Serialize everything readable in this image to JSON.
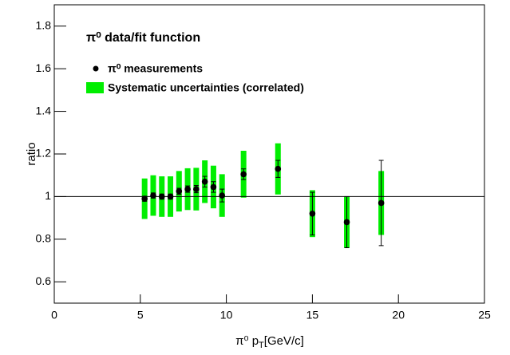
{
  "chart_data": {
    "type": "errorbar",
    "title": "π⁰ data/fit function",
    "xlabel": {
      "main": "π⁰ p",
      "sub": "T",
      "unit": "[GeV/c]"
    },
    "ylabel": "ratio",
    "x": [
      5.25,
      5.75,
      6.25,
      6.75,
      7.25,
      7.75,
      8.25,
      8.75,
      9.25,
      9.75,
      11,
      13,
      15,
      17,
      19
    ],
    "series": [
      {
        "name": "π⁰ measurements",
        "color": "#000000",
        "values": [
          0.99,
          1.005,
          1.0,
          1.0,
          1.025,
          1.035,
          1.035,
          1.07,
          1.045,
          1.005,
          1.105,
          1.13,
          0.92,
          0.88,
          0.97
        ],
        "errors": [
          0.012,
          0.012,
          0.012,
          0.012,
          0.014,
          0.015,
          0.017,
          0.025,
          0.025,
          0.03,
          0.025,
          0.04,
          0.1,
          0.12,
          0.2
        ]
      },
      {
        "name": "Systematic uncertainties (correlated)",
        "color": "#00ee00",
        "errors": [
          0.095,
          0.095,
          0.095,
          0.095,
          0.095,
          0.098,
          0.1,
          0.1,
          0.1,
          0.1,
          0.11,
          0.12,
          0.11,
          0.12,
          0.15
        ]
      }
    ],
    "reference_line": 1,
    "xlim": [
      0,
      25
    ],
    "xticks": [
      0,
      5,
      10,
      15,
      20,
      25
    ],
    "ylim": [
      0.5,
      1.9
    ],
    "yticks": [
      0.6,
      0.8,
      1,
      1.2,
      1.4,
      1.6,
      1.8
    ]
  }
}
